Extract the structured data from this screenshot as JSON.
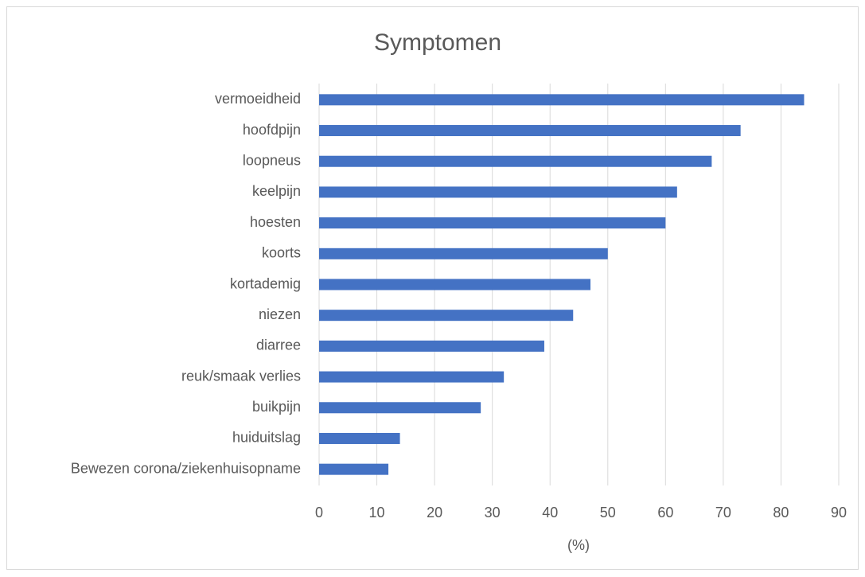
{
  "chart_data": {
    "type": "bar",
    "orientation": "horizontal",
    "title": "Symptomen",
    "x_label": "(%)",
    "categories": [
      "vermoeidheid",
      "hoofdpijn",
      "loopneus",
      "keelpijn",
      "hoesten",
      "koorts",
      "kortademig",
      "niezen",
      "diarree",
      "reuk/smaak verlies",
      "buikpijn",
      "huiduitslag",
      "Bewezen corona/ziekenhuisopname"
    ],
    "values": [
      84,
      73,
      68,
      62,
      60,
      50,
      47,
      44,
      39,
      32,
      28,
      14,
      12
    ],
    "color": "#4472c4",
    "xlim": [
      0,
      90
    ],
    "xticks": [
      0,
      10,
      20,
      30,
      40,
      50,
      60,
      70,
      80,
      90
    ],
    "grid": true
  }
}
